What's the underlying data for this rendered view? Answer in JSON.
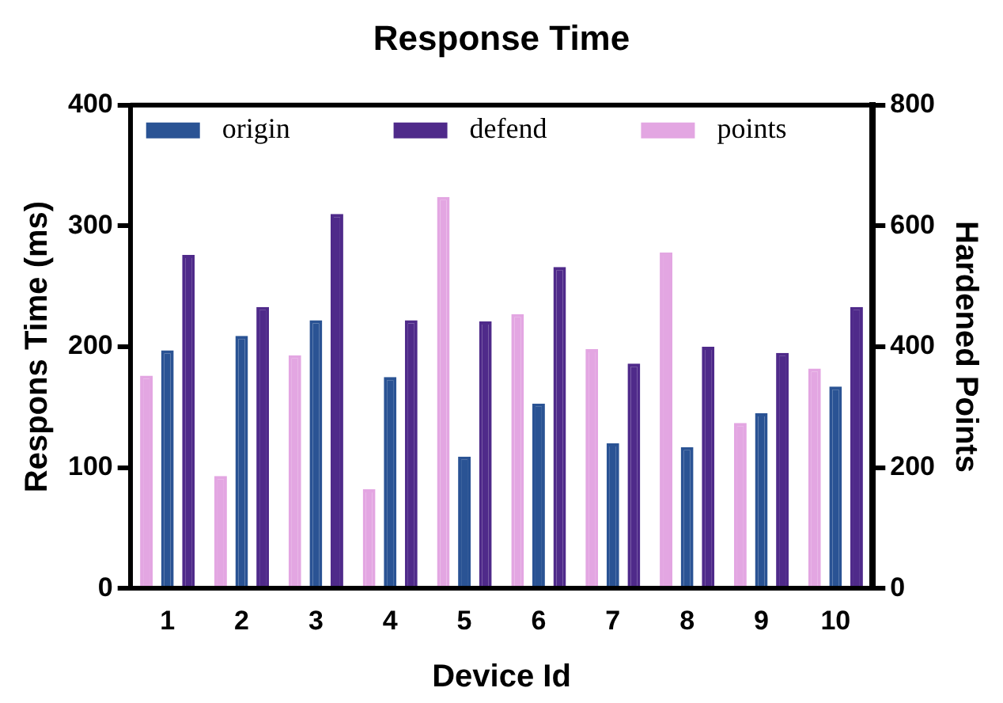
{
  "chart_data": {
    "type": "bar",
    "title": "Response Time",
    "xlabel": "Device Id",
    "ylabel": "Respons Time (ms)",
    "y2label": "Hardened Points",
    "categories": [
      "1",
      "2",
      "3",
      "4",
      "5",
      "6",
      "7",
      "8",
      "9",
      "10"
    ],
    "series": [
      {
        "name": "origin",
        "color": "#2a5394",
        "values": [
          197,
          209,
          222,
          175,
          109,
          153,
          120,
          117,
          145,
          167
        ]
      },
      {
        "name": "defend",
        "color": "#4f2a8a",
        "values": [
          276,
          233,
          310,
          222,
          221,
          266,
          186,
          200,
          195,
          233
        ]
      },
      {
        "name": "points",
        "color": "#e3a6e2",
        "axis": "y2",
        "values": [
          352,
          186,
          386,
          164,
          648,
          454,
          396,
          556,
          274,
          364
        ]
      }
    ],
    "ylim": [
      0,
      400
    ],
    "yticks": [
      0,
      100,
      200,
      300,
      400
    ],
    "y2lim": [
      0,
      800
    ],
    "y2ticks": [
      0,
      200,
      400,
      600,
      800
    ],
    "grid": false,
    "legend": "top"
  }
}
